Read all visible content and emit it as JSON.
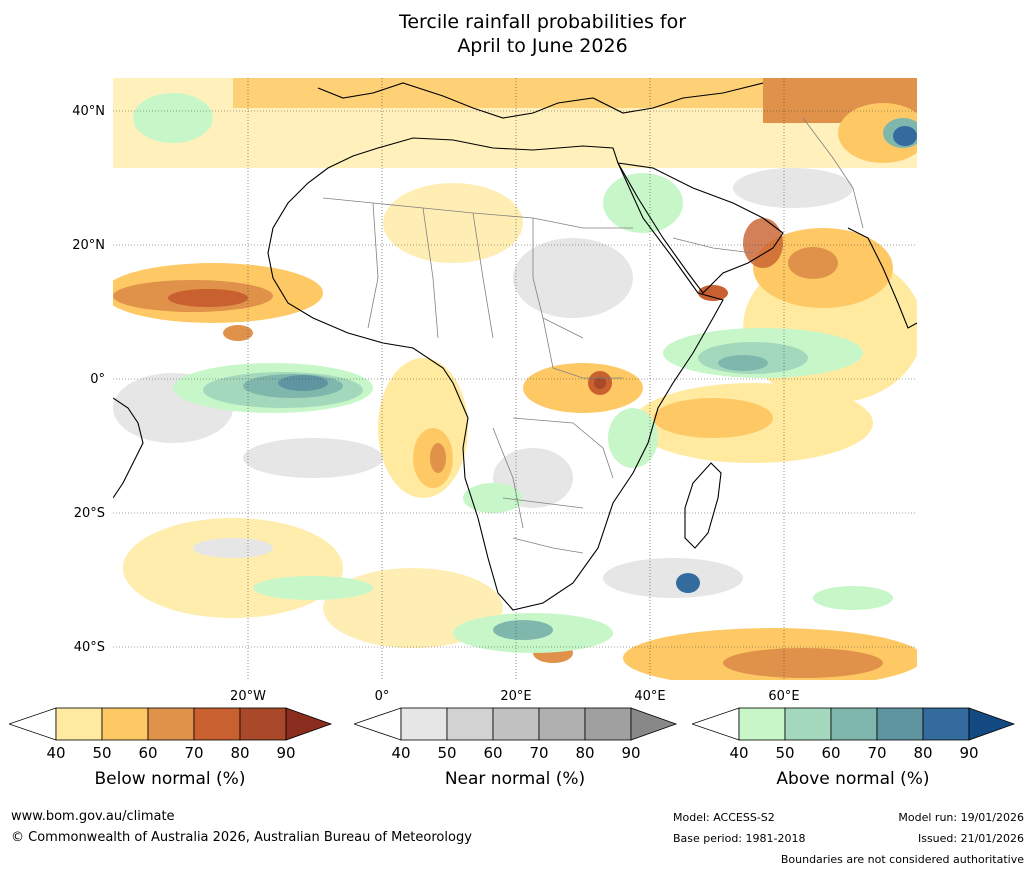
{
  "title": {
    "line1": "Tercile rainfall probabilities for",
    "line2": "April to June 2026"
  },
  "map": {
    "lat_labels": [
      "40°N",
      "20°N",
      "0°",
      "20°S",
      "40°S"
    ],
    "lon_labels": [
      "20°W",
      "0°",
      "20°E",
      "40°E",
      "60°E"
    ],
    "colors": {
      "below": [
        "#ffeaa0",
        "#fec964",
        "#e0914a",
        "#c8602f",
        "#a9492a",
        "#8a2d1e"
      ],
      "near": [
        "#e6e6e6",
        "#d2d2d2",
        "#c1c1c1",
        "#b0b0b0",
        "#a0a0a0",
        "#888888"
      ],
      "above": [
        "#c7f7c9",
        "#a4d8bd",
        "#80b7ad",
        "#5f95a1",
        "#336b9e",
        "#134a82"
      ],
      "land_line": "#000000",
      "border_line": "#808080"
    }
  },
  "colorbars": [
    {
      "title": "Below normal (%)",
      "ticks": [
        "40",
        "50",
        "60",
        "70",
        "80",
        "90"
      ]
    },
    {
      "title": "Near normal (%)",
      "ticks": [
        "40",
        "50",
        "60",
        "70",
        "80",
        "90"
      ]
    },
    {
      "title": "Above normal (%)",
      "ticks": [
        "40",
        "50",
        "60",
        "70",
        "80",
        "90"
      ]
    }
  ],
  "footer": {
    "website": "www.bom.gov.au/climate",
    "copyright": "© Commonwealth of Australia 2026, Australian Bureau of Meteorology",
    "model": "Model: ACCESS-S2",
    "base_period": "Base period: 1981-2018",
    "model_run": "Model run: 19/01/2026",
    "issued": "Issued: 21/01/2026",
    "disclaimer": "Boundaries are not considered authoritative"
  }
}
